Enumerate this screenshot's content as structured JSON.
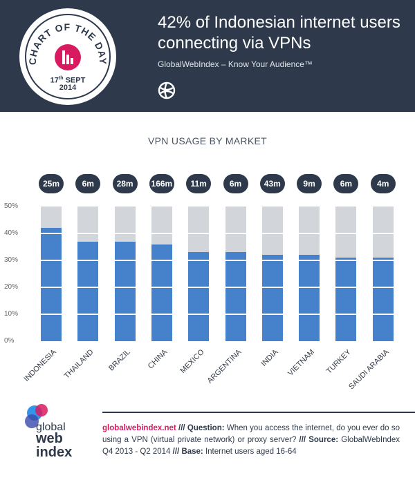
{
  "header": {
    "badge_top_text": "CHART OF THE DAY",
    "badge_day": "17",
    "badge_day_suffix": "th",
    "badge_month": "SEPT",
    "badge_year": "2014",
    "title": "42% of Indonesian internet users connecting via VPNs",
    "subtitle": "GlobalWebIndex – Know Your Audience™"
  },
  "chart_data": {
    "type": "bar",
    "title": "VPN USAGE BY MARKET",
    "categories": [
      "INDONESIA",
      "THAILAND",
      "BRAZIL",
      "CHINA",
      "MEXICO",
      "ARGENTINA",
      "INDIA",
      "VIETNAM",
      "TURKEY",
      "SAUDI ARABIA"
    ],
    "values": [
      42,
      37,
      37,
      36,
      33,
      33,
      32,
      32,
      31,
      31
    ],
    "users": [
      "25m",
      "6m",
      "28m",
      "166m",
      "11m",
      "6m",
      "43m",
      "9m",
      "6m",
      "4m"
    ],
    "yticks": [
      "0%",
      "10%",
      "20%",
      "30%",
      "40%",
      "50%"
    ],
    "ylim": [
      0,
      50
    ],
    "colors": {
      "fill": "#4682cc",
      "background": "#d2d6db",
      "badge": "#2e3a4b"
    }
  },
  "footer": {
    "logo_line1": "global",
    "logo_line2": "web",
    "logo_line3": "index",
    "site": "globalwebindex.net",
    "q_sep": " /// ",
    "q_label": "Question:",
    "question": " When you access the internet, do you ever do so using a VPN (virtual private network) or proxy server? ",
    "s_sep": "/// ",
    "s_label": "Source:",
    "source": " GlobalWebIndex Q4 2013 - Q2 2014 ",
    "b_sep": " /// ",
    "b_label": "Base:",
    "base": " Internet users aged 16-64"
  }
}
